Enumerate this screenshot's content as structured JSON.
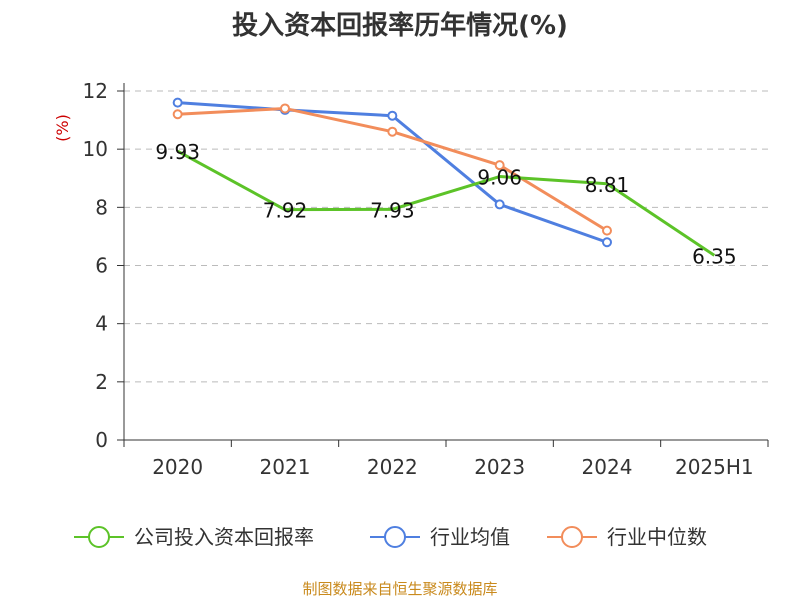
{
  "chart_data": {
    "type": "line",
    "title": "投入资本回报率历年情况(%)",
    "unit_label": "(%)",
    "categories": [
      "2020",
      "2021",
      "2022",
      "2023",
      "2024",
      "2025H1"
    ],
    "ylim": [
      0,
      12
    ],
    "yticks": [
      0,
      2,
      4,
      6,
      8,
      10,
      12
    ],
    "grid": true,
    "legend_position": "bottom",
    "series": [
      {
        "name": "公司投入资本回报率",
        "color": "#5cc328",
        "values": [
          9.93,
          7.92,
          7.93,
          9.06,
          8.81,
          6.35
        ],
        "labels": [
          "9.93",
          "7.92",
          "7.93",
          "9.06",
          "8.81",
          "6.35"
        ],
        "show_markers": false
      },
      {
        "name": "行业均值",
        "color": "#4f7fe0",
        "values": [
          11.6,
          11.35,
          11.15,
          8.1,
          6.8,
          null
        ],
        "show_markers": true
      },
      {
        "name": "行业中位数",
        "color": "#f28d5b",
        "values": [
          11.2,
          11.4,
          10.6,
          9.45,
          7.2,
          null
        ],
        "show_markers": true
      }
    ],
    "source": "制图数据来自恒生聚源数据库"
  }
}
